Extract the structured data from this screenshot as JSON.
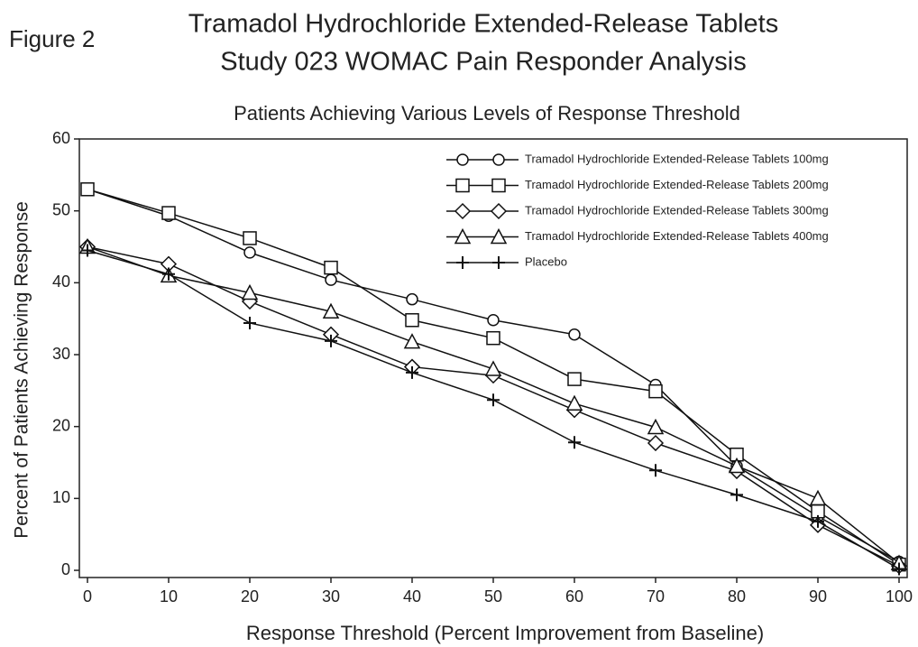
{
  "chart_data": {
    "type": "line",
    "figure_label": "Figure 2",
    "title": "Tramadol Hydrochloride Extended-Release Tablets",
    "subtitle": "Study 023 WOMAC Pain Responder Analysis",
    "plot_title": "Patients Achieving Various Levels of Response Threshold",
    "xlabel": "Response Threshold (Percent Improvement from Baseline)",
    "ylabel": "Percent of Patients Achieving Response",
    "x": [
      0,
      10,
      20,
      30,
      40,
      50,
      60,
      70,
      80,
      90,
      100
    ],
    "xlim": [
      -1,
      101
    ],
    "xticks": [
      0,
      10,
      20,
      30,
      40,
      50,
      60,
      70,
      80,
      90,
      100
    ],
    "ylim": [
      -1,
      60
    ],
    "yticks": [
      0,
      10,
      20,
      30,
      40,
      50,
      60
    ],
    "grid": false,
    "legend": "upper right",
    "series": [
      {
        "name": "Tramadol Hydrochloride Extended-Release Tablets 100mg",
        "color": "#111111",
        "marker": "circle",
        "values": [
          53,
          49.3,
          44.2,
          40.4,
          37.7,
          34.8,
          32.8,
          25.8,
          14.5,
          7.5,
          1.2
        ]
      },
      {
        "name": "Tramadol Hydrochloride Extended-Release Tablets 200mg",
        "color": "#111111",
        "marker": "square",
        "values": [
          53,
          49.7,
          46.2,
          42.1,
          34.8,
          32.3,
          26.6,
          24.9,
          16.1,
          8.2,
          0.8
        ]
      },
      {
        "name": "Tramadol Hydrochloride Extended-Release Tablets 300mg",
        "color": "#111111",
        "marker": "diamond",
        "values": [
          45,
          42.6,
          37.4,
          32.8,
          28.3,
          27.1,
          22.3,
          17.7,
          13.8,
          6.3,
          0.6
        ]
      },
      {
        "name": "Tramadol Hydrochloride Extended-Release Tablets 400mg",
        "color": "#111111",
        "marker": "triangle",
        "values": [
          45,
          41.0,
          38.6,
          36.0,
          31.8,
          28.0,
          23.2,
          19.9,
          14.5,
          10.0,
          1.0
        ]
      },
      {
        "name": "Placebo",
        "color": "#111111",
        "marker": "plus",
        "values": [
          44.5,
          41.2,
          34.4,
          31.9,
          27.5,
          23.7,
          17.8,
          13.9,
          10.5,
          6.8,
          0.2
        ]
      }
    ]
  }
}
